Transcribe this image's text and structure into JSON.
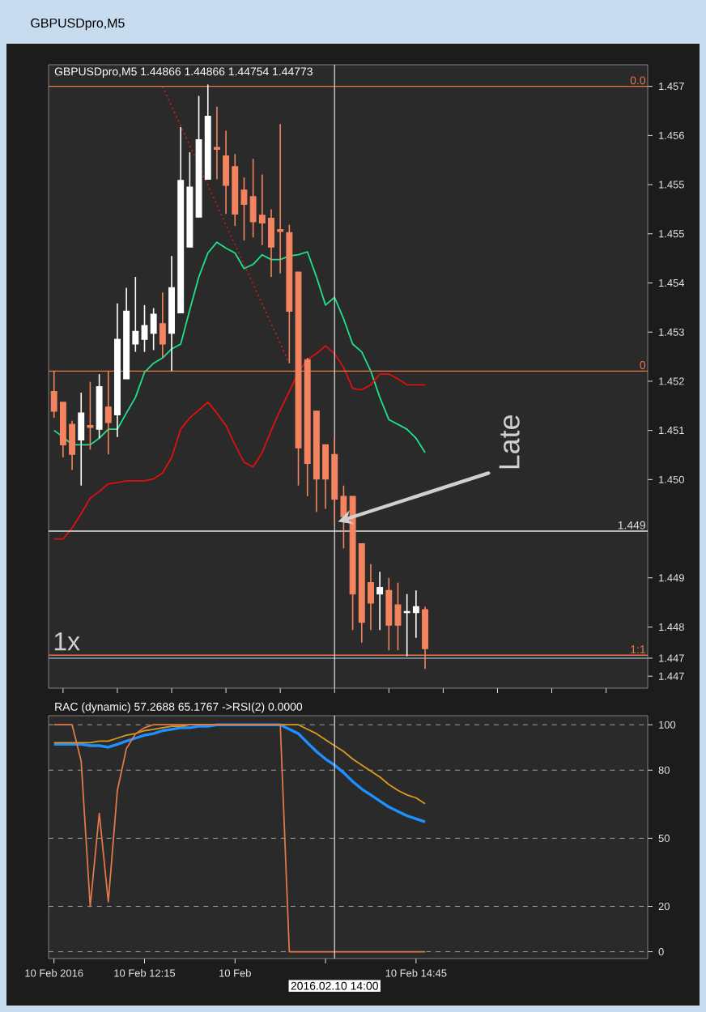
{
  "chart_data": [
    {
      "type": "candlestick",
      "title": "GBPUSDpro,M5",
      "subtitle": "GBPUSDpro,M5  1.44866 1.44866 1.44754 1.44773",
      "x": [
        "2016-02-10T11:25",
        "2016-02-10T11:30",
        "2016-02-10T11:35",
        "2016-02-10T11:40",
        "2016-02-10T11:45",
        "2016-02-10T11:50",
        "2016-02-10T11:55",
        "2016-02-10T12:00",
        "2016-02-10T12:05",
        "2016-02-10T12:10",
        "2016-02-10T12:15",
        "2016-02-10T12:20",
        "2016-02-10T12:25",
        "2016-02-10T12:30",
        "2016-02-10T12:35",
        "2016-02-10T12:40",
        "2016-02-10T12:45",
        "2016-02-10T12:50",
        "2016-02-10T12:55",
        "2016-02-10T13:00",
        "2016-02-10T13:05",
        "2016-02-10T13:10",
        "2016-02-10T13:15",
        "2016-02-10T13:20",
        "2016-02-10T13:25",
        "2016-02-10T13:30",
        "2016-02-10T13:35",
        "2016-02-10T13:40",
        "2016-02-10T13:45",
        "2016-02-10T13:50",
        "2016-02-10T13:55",
        "2016-02-10T14:00",
        "2016-02-10T14:05",
        "2016-02-10T14:10",
        "2016-02-10T14:15",
        "2016-02-10T14:20",
        "2016-02-10T14:25",
        "2016-02-10T14:30",
        "2016-02-10T14:35",
        "2016-02-10T14:40",
        "2016-02-10T14:45",
        "2016-02-10T14:50"
      ],
      "ohlc": [
        [
          1.45191,
          1.45225,
          1.45147,
          1.45158
        ],
        [
          1.45173,
          1.45173,
          1.45081,
          1.45102
        ],
        [
          1.45136,
          1.45142,
          1.4506,
          1.45086
        ],
        [
          1.4511,
          1.45189,
          1.45034,
          1.45155
        ],
        [
          1.45134,
          1.45207,
          1.45094,
          1.45131
        ],
        [
          1.45128,
          1.4522,
          1.45113,
          1.45199
        ],
        [
          1.45165,
          1.45225,
          1.45086,
          1.45139
        ],
        [
          1.45152,
          1.45338,
          1.45115,
          1.45278
        ],
        [
          1.45212,
          1.45364,
          1.45212,
          1.45325
        ],
        [
          1.4527,
          1.45382,
          1.45257,
          1.45291
        ],
        [
          1.45278,
          1.45335,
          1.45257,
          1.45301
        ],
        [
          1.45288,
          1.4533,
          1.4526,
          1.4532
        ],
        [
          1.45304,
          1.45356,
          1.45247,
          1.4527
        ],
        [
          1.45288,
          1.45417,
          1.45225,
          1.45364
        ],
        [
          1.45322,
          1.45632,
          1.45322,
          1.45543
        ],
        [
          1.45432,
          1.4559,
          1.45432,
          1.45532
        ],
        [
          1.45482,
          1.45684,
          1.45482,
          1.45611
        ],
        [
          1.45545,
          1.45703,
          1.45545,
          1.4565
        ],
        [
          1.45598,
          1.45666,
          1.45545,
          1.45595
        ],
        [
          1.45584,
          1.45626,
          1.45487,
          1.45535
        ],
        [
          1.45566,
          1.45587,
          1.45467,
          1.45487
        ],
        [
          1.45527,
          1.45548,
          1.45443,
          1.45503
        ],
        [
          1.45516,
          1.45579,
          1.45448,
          1.45474
        ],
        [
          1.45485,
          1.45553,
          1.45435,
          1.45472
        ],
        [
          1.4548,
          1.45495,
          1.45382,
          1.45432
        ],
        [
          1.45461,
          1.45637,
          1.45388,
          1.45458
        ],
        [
          1.45456,
          1.45469,
          1.45238,
          1.45325
        ],
        [
          1.4539,
          1.4539,
          1.45034,
          1.45097
        ],
        [
          1.45244,
          1.45247,
          1.45016,
          1.45071
        ],
        [
          1.45158,
          1.45158,
          1.4499,
          1.45045
        ],
        [
          1.45102,
          1.45102,
          1.44995,
          1.45045
        ],
        [
          1.45086,
          1.45113,
          1.44971,
          1.45011
        ],
        [
          1.45016,
          1.45034,
          1.44929,
          1.44982
        ],
        [
          1.45016,
          1.45016,
          1.44793,
          1.44853
        ],
        [
          1.44937,
          1.44937,
          1.44772,
          1.44806
        ],
        [
          1.44872,
          1.44903,
          1.44793,
          1.44838
        ],
        [
          1.44853,
          1.4489,
          1.44793,
          1.44864
        ],
        [
          1.44859,
          1.4488,
          1.44759,
          1.44801
        ],
        [
          1.44835,
          1.44872,
          1.44759,
          1.44801
        ],
        [
          1.44822,
          1.44853,
          1.44749,
          1.44824
        ],
        [
          1.44822,
          1.44859,
          1.4478,
          1.44832
        ],
        [
          1.44827,
          1.44832,
          1.44728,
          1.44762
        ]
      ],
      "colors": [
        "#f4845f",
        "#f4845f",
        "#f4845f",
        "#ffffff",
        "#f4845f",
        "#ffffff",
        "#f4845f",
        "#ffffff",
        "#ffffff",
        "#ffffff",
        "#ffffff",
        "#ffffff",
        "#f4845f",
        "#ffffff",
        "#ffffff",
        "#ffffff",
        "#ffffff",
        "#ffffff",
        "#f4845f",
        "#f4845f",
        "#f4845f",
        "#f4845f",
        "#f4845f",
        "#f4845f",
        "#f4845f",
        "#f4845f",
        "#f4845f",
        "#f4845f",
        "#f4845f",
        "#f4845f",
        "#f4845f",
        "#f4845f",
        "#f4845f",
        "#f4845f",
        "#f4845f",
        "#f4845f",
        "#ffffff",
        "#f4845f",
        "#f4845f",
        "#ffffff",
        "#ffffff",
        "#f4845f"
      ],
      "series": [
        {
          "type": "line",
          "color": "#1ee38a",
          "values": [
            1.45126,
            1.45115,
            1.45102,
            1.45102,
            1.45102,
            1.45113,
            1.45128,
            1.45128,
            1.45155,
            1.45181,
            1.45223,
            1.45238,
            1.45247,
            1.45262,
            1.4527,
            1.45327,
            1.45382,
            1.45422,
            1.4544,
            1.4543,
            1.45422,
            1.45396,
            1.45403,
            1.45419,
            1.45411,
            1.45411,
            1.45417,
            1.45419,
            1.45424,
            1.45382,
            1.45335,
            1.45348,
            1.45312,
            1.4527,
            1.45257,
            1.45225,
            1.45181,
            1.45144,
            1.45136,
            1.45128,
            1.45113,
            1.45089
          ]
        },
        {
          "type": "line",
          "color": "#e01010",
          "values": [
            1.44945,
            1.44945,
            1.44963,
            1.44987,
            1.45013,
            1.45024,
            1.45037,
            1.45039,
            1.45042,
            1.45042,
            1.45042,
            1.45045,
            1.45055,
            1.45081,
            1.45128,
            1.45147,
            1.4516,
            1.45173,
            1.45155,
            1.45134,
            1.45102,
            1.45073,
            1.45065,
            1.45089,
            1.45126,
            1.4516,
            1.45191,
            1.45223,
            1.45244,
            1.45254,
            1.45267,
            1.45254,
            1.45231,
            1.45196,
            1.45194,
            1.45202,
            1.4522,
            1.4522,
            1.45212,
            1.45202,
            1.45202,
            1.45202
          ]
        },
        {
          "type": "line",
          "color": "#d02020",
          "line_style": "dotted",
          "x": [
            "2016-02-10T12:25",
            "2016-02-10T13:35"
          ],
          "values": [
            1.457,
            1.45238
          ]
        }
      ],
      "xlim": [
        "2016-02-10T11:22",
        "2016-02-10T16:53"
      ],
      "ylim": [
        1.44696,
        1.45736
      ],
      "yticks": [
        {
          "value": 1.457,
          "label": "1.457"
        },
        {
          "value": 1.45618,
          "label": "1.456"
        },
        {
          "value": 1.45536,
          "label": "1.455"
        },
        {
          "value": 1.45454,
          "label": "1.455"
        },
        {
          "value": 1.45372,
          "label": "1.454"
        },
        {
          "value": 1.4529,
          "label": "1.453"
        },
        {
          "value": 1.45208,
          "label": "1.452"
        },
        {
          "value": 1.45126,
          "label": "1.451"
        },
        {
          "value": 1.45044,
          "label": "1.450"
        },
        {
          "value": 1.4488,
          "label": "1.449"
        },
        {
          "value": 1.44798,
          "label": "1.448"
        },
        {
          "value": 1.44746,
          "label": "1.447"
        },
        {
          "value": 1.44716,
          "label": "1.447"
        }
      ],
      "tick_labels": "y",
      "ref_lines": [
        {
          "axis": "y",
          "value": 1.457,
          "color": "#e8784a"
        },
        {
          "axis": "y",
          "value": 1.45225,
          "color": "#e8784a"
        },
        {
          "axis": "y",
          "value": 1.44751,
          "color": "#e8784a"
        },
        {
          "axis": "y",
          "value": 1.44958,
          "color": "#e0e0e0"
        },
        {
          "axis": "y",
          "value": 1.44746,
          "color": "#8a9bb0"
        },
        {
          "axis": "x",
          "value": "2016-02-10T14:00",
          "color": "#e0e0e0"
        }
      ],
      "annotations": [
        {
          "text": "Late",
          "x": "2016-02-10T14:00",
          "y": 1.44971
        },
        "1x",
        {
          "text": "0.0",
          "x": "2016-02-10T16:53",
          "y": 1.457
        },
        {
          "text": "0",
          "x": "2016-02-10T16:53",
          "y": 1.45225
        },
        {
          "text": "1:1",
          "x": "2016-02-10T16:53",
          "y": 1.44751
        },
        {
          "text": "1.449",
          "x": "2016-02-10T16:53",
          "y": 1.44958
        }
      ]
    },
    {
      "type": "line",
      "title": "RAC (dynamic) 57.2688 65.1767  ->RSI(2) 0.0000",
      "x": [
        "2016-02-10T11:25",
        "2016-02-10T11:30",
        "2016-02-10T11:35",
        "2016-02-10T11:40",
        "2016-02-10T11:45",
        "2016-02-10T11:50",
        "2016-02-10T11:55",
        "2016-02-10T12:00",
        "2016-02-10T12:05",
        "2016-02-10T12:10",
        "2016-02-10T12:15",
        "2016-02-10T12:20",
        "2016-02-10T12:25",
        "2016-02-10T12:30",
        "2016-02-10T12:35",
        "2016-02-10T12:40",
        "2016-02-10T12:45",
        "2016-02-10T12:50",
        "2016-02-10T12:55",
        "2016-02-10T13:00",
        "2016-02-10T13:05",
        "2016-02-10T13:10",
        "2016-02-10T13:15",
        "2016-02-10T13:20",
        "2016-02-10T13:25",
        "2016-02-10T13:30",
        "2016-02-10T13:35",
        "2016-02-10T13:40",
        "2016-02-10T13:45",
        "2016-02-10T13:50",
        "2016-02-10T13:55",
        "2016-02-10T14:00",
        "2016-02-10T14:05",
        "2016-02-10T14:10",
        "2016-02-10T14:15",
        "2016-02-10T14:20",
        "2016-02-10T14:25",
        "2016-02-10T14:30",
        "2016-02-10T14:35",
        "2016-02-10T14:40",
        "2016-02-10T14:45",
        "2016-02-10T14:50"
      ],
      "series": [
        {
          "color": "#1e90ff",
          "values": [
            91.4,
            91.4,
            91.4,
            91.4,
            90.8,
            90.8,
            90.1,
            91.4,
            92.8,
            94.1,
            95.4,
            96.1,
            97.4,
            98.0,
            98.7,
            98.7,
            99.3,
            99.3,
            100,
            100,
            100,
            100,
            100,
            100,
            100,
            100,
            98.0,
            96.1,
            92.1,
            88.2,
            84.9,
            82.2,
            78.9,
            75.0,
            71.7,
            69.1,
            66.4,
            63.8,
            61.8,
            59.9,
            58.6,
            57.2688
          ]
        },
        {
          "color": "#d99a1e",
          "values": [
            92.1,
            92.1,
            92.1,
            92.1,
            92.1,
            92.8,
            92.8,
            94.1,
            95.4,
            96.1,
            97.4,
            98.0,
            98.7,
            99.3,
            99.3,
            100,
            100,
            100,
            100,
            100,
            100,
            100,
            100,
            100,
            100,
            100,
            100,
            100,
            98.0,
            96.1,
            93.4,
            90.8,
            88.2,
            84.9,
            82.2,
            79.6,
            77.0,
            73.7,
            71.1,
            69.1,
            67.8,
            65.1767
          ]
        },
        {
          "color": "#e07848",
          "values": [
            100,
            100,
            100,
            84,
            20,
            61,
            22,
            71,
            89.5,
            96,
            98.7,
            100,
            100,
            100,
            100,
            100,
            100,
            100,
            100,
            100,
            100,
            100,
            100,
            100,
            100,
            100,
            0,
            0,
            0,
            0,
            0,
            0,
            0,
            0,
            0,
            0,
            0,
            0,
            0,
            0,
            0,
            0
          ]
        }
      ],
      "xlim": [
        "2016-02-10T11:22",
        "2016-02-10T16:53"
      ],
      "ylim": [
        -3,
        104
      ],
      "xticks": [
        {
          "value": "2016-02-10T11:25",
          "label": "10 Feb 2016"
        },
        {
          "value": "2016-02-10T12:15",
          "label": "10 Feb 12:15"
        },
        {
          "value": "2016-02-10T13:05",
          "label": "10 Feb"
        },
        {
          "value": "2016-02-10T13:55",
          "label": null
        },
        {
          "value": "2016-02-10T14:45",
          "label": "10 Feb 14:45"
        }
      ],
      "yticks": [
        0,
        20,
        50,
        80,
        100
      ],
      "grid": "y",
      "ref_lines": [
        {
          "axis": "x",
          "value": "2016-02-10T14:00",
          "label": "2016.02.10 14:00",
          "color": "#e0e0e0"
        }
      ]
    }
  ]
}
